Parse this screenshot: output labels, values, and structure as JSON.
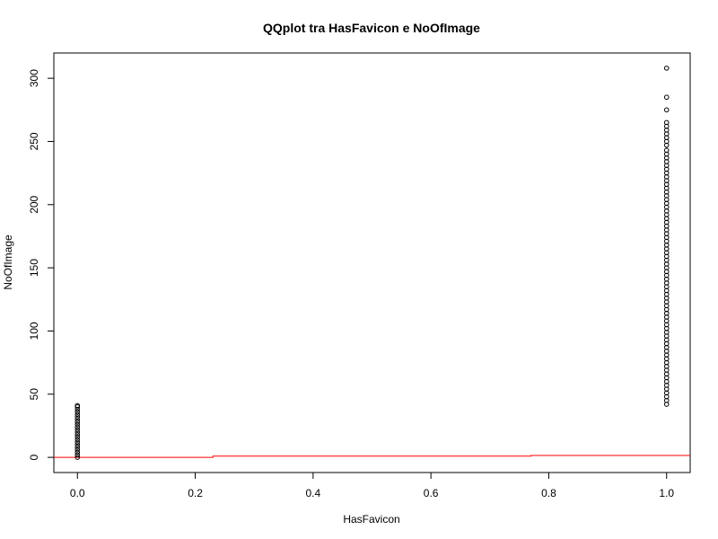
{
  "chart_data": {
    "type": "scatter",
    "title": "QQplot tra HasFavicon e NoOfImage",
    "xlabel": "HasFavicon",
    "ylabel": "NoOfImage",
    "xlim": [
      -0.04,
      1.04
    ],
    "ylim": [
      -12,
      320
    ],
    "x_ticks": [
      0.0,
      0.2,
      0.4,
      0.6,
      0.8,
      1.0
    ],
    "x_tick_labels": [
      "0.0",
      "0.2",
      "0.4",
      "0.6",
      "0.8",
      "1.0"
    ],
    "y_ticks": [
      0,
      50,
      100,
      150,
      200,
      250,
      300
    ],
    "y_tick_labels": [
      "0",
      "50",
      "100",
      "150",
      "200",
      "250",
      "300"
    ],
    "grid": false,
    "series": [
      {
        "marker": "open-circle",
        "color": "#000000",
        "points": [
          {
            "x": 0,
            "y": 0
          },
          {
            "x": 0,
            "y": 2
          },
          {
            "x": 0,
            "y": 4
          },
          {
            "x": 0,
            "y": 6
          },
          {
            "x": 0,
            "y": 8
          },
          {
            "x": 0,
            "y": 10
          },
          {
            "x": 0,
            "y": 12
          },
          {
            "x": 0,
            "y": 14
          },
          {
            "x": 0,
            "y": 16
          },
          {
            "x": 0,
            "y": 18
          },
          {
            "x": 0,
            "y": 20
          },
          {
            "x": 0,
            "y": 22
          },
          {
            "x": 0,
            "y": 24
          },
          {
            "x": 0,
            "y": 26
          },
          {
            "x": 0,
            "y": 28
          },
          {
            "x": 0,
            "y": 30
          },
          {
            "x": 0,
            "y": 32
          },
          {
            "x": 0,
            "y": 34
          },
          {
            "x": 0,
            "y": 36
          },
          {
            "x": 0,
            "y": 38
          },
          {
            "x": 0,
            "y": 40
          },
          {
            "x": 0,
            "y": 41
          },
          {
            "x": 1,
            "y": 42
          },
          {
            "x": 1,
            "y": 45
          },
          {
            "x": 1,
            "y": 48
          },
          {
            "x": 1,
            "y": 51
          },
          {
            "x": 1,
            "y": 54
          },
          {
            "x": 1,
            "y": 57
          },
          {
            "x": 1,
            "y": 60
          },
          {
            "x": 1,
            "y": 63
          },
          {
            "x": 1,
            "y": 66
          },
          {
            "x": 1,
            "y": 69
          },
          {
            "x": 1,
            "y": 72
          },
          {
            "x": 1,
            "y": 75
          },
          {
            "x": 1,
            "y": 78
          },
          {
            "x": 1,
            "y": 81
          },
          {
            "x": 1,
            "y": 84
          },
          {
            "x": 1,
            "y": 87
          },
          {
            "x": 1,
            "y": 90
          },
          {
            "x": 1,
            "y": 93
          },
          {
            "x": 1,
            "y": 96
          },
          {
            "x": 1,
            "y": 99
          },
          {
            "x": 1,
            "y": 102
          },
          {
            "x": 1,
            "y": 105
          },
          {
            "x": 1,
            "y": 108
          },
          {
            "x": 1,
            "y": 111
          },
          {
            "x": 1,
            "y": 114
          },
          {
            "x": 1,
            "y": 117
          },
          {
            "x": 1,
            "y": 120
          },
          {
            "x": 1,
            "y": 123
          },
          {
            "x": 1,
            "y": 126
          },
          {
            "x": 1,
            "y": 129
          },
          {
            "x": 1,
            "y": 132
          },
          {
            "x": 1,
            "y": 135
          },
          {
            "x": 1,
            "y": 138
          },
          {
            "x": 1,
            "y": 141
          },
          {
            "x": 1,
            "y": 144
          },
          {
            "x": 1,
            "y": 147
          },
          {
            "x": 1,
            "y": 150
          },
          {
            "x": 1,
            "y": 153
          },
          {
            "x": 1,
            "y": 156
          },
          {
            "x": 1,
            "y": 159
          },
          {
            "x": 1,
            "y": 162
          },
          {
            "x": 1,
            "y": 165
          },
          {
            "x": 1,
            "y": 168
          },
          {
            "x": 1,
            "y": 171
          },
          {
            "x": 1,
            "y": 174
          },
          {
            "x": 1,
            "y": 177
          },
          {
            "x": 1,
            "y": 180
          },
          {
            "x": 1,
            "y": 183
          },
          {
            "x": 1,
            "y": 186
          },
          {
            "x": 1,
            "y": 189
          },
          {
            "x": 1,
            "y": 192
          },
          {
            "x": 1,
            "y": 195
          },
          {
            "x": 1,
            "y": 198
          },
          {
            "x": 1,
            "y": 201
          },
          {
            "x": 1,
            "y": 204
          },
          {
            "x": 1,
            "y": 207
          },
          {
            "x": 1,
            "y": 210
          },
          {
            "x": 1,
            "y": 213
          },
          {
            "x": 1,
            "y": 216
          },
          {
            "x": 1,
            "y": 219
          },
          {
            "x": 1,
            "y": 222
          },
          {
            "x": 1,
            "y": 225
          },
          {
            "x": 1,
            "y": 228
          },
          {
            "x": 1,
            "y": 231
          },
          {
            "x": 1,
            "y": 234
          },
          {
            "x": 1,
            "y": 237
          },
          {
            "x": 1,
            "y": 240
          },
          {
            "x": 1,
            "y": 243
          },
          {
            "x": 1,
            "y": 247
          },
          {
            "x": 1,
            "y": 250
          },
          {
            "x": 1,
            "y": 253
          },
          {
            "x": 1,
            "y": 256
          },
          {
            "x": 1,
            "y": 259
          },
          {
            "x": 1,
            "y": 262
          },
          {
            "x": 1,
            "y": 265
          },
          {
            "x": 1,
            "y": 275
          },
          {
            "x": 1,
            "y": 285
          },
          {
            "x": 1,
            "y": 308
          }
        ]
      }
    ],
    "reference_line": {
      "color": "#ff0000",
      "points": [
        {
          "x": -0.04,
          "y": 0
        },
        {
          "x": 0.23,
          "y": 0
        },
        {
          "x": 0.23,
          "y": 1
        },
        {
          "x": 0.77,
          "y": 1
        },
        {
          "x": 0.77,
          "y": 1.5
        },
        {
          "x": 1.04,
          "y": 1.5
        }
      ]
    }
  }
}
